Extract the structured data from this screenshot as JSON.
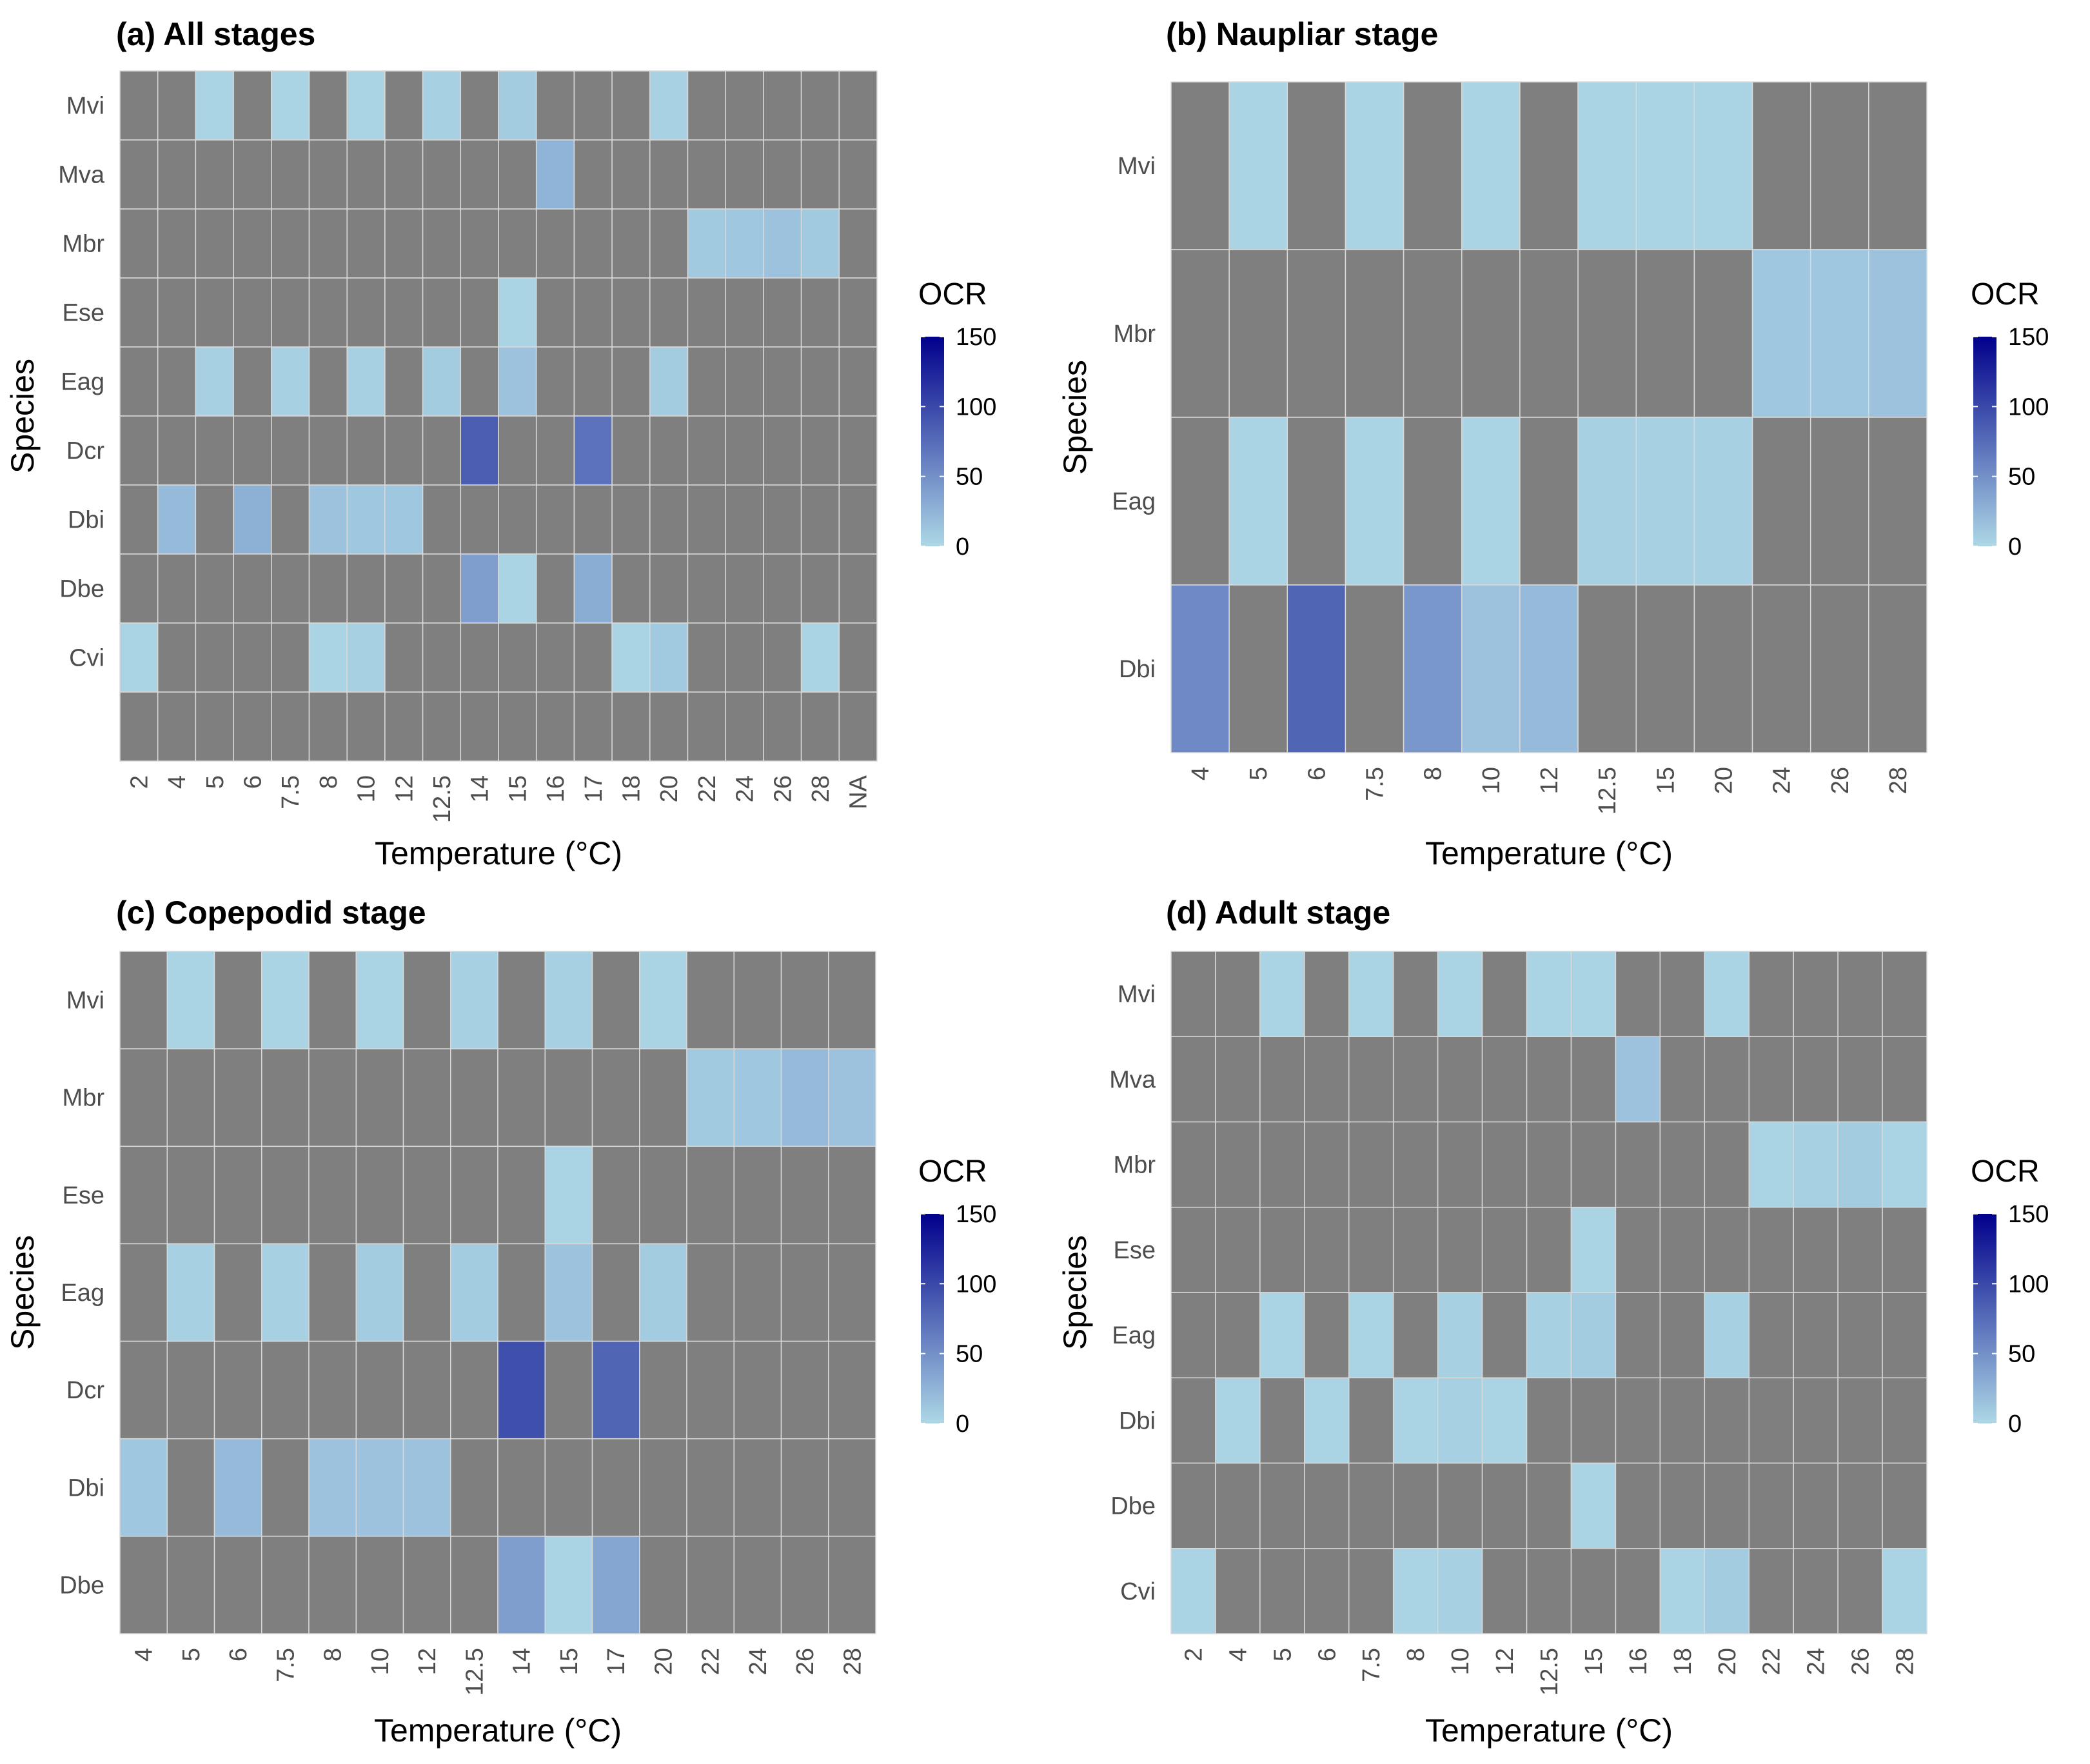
{
  "legend": {
    "title": "OCR",
    "min": 0,
    "max": 150,
    "ticks": [
      150,
      100,
      50,
      0
    ],
    "low_color": "#ADD8E6",
    "high_color": "#00008B"
  },
  "na_color": "#7F7F7F",
  "chart_data": [
    {
      "type": "heatmap",
      "title": "(a) All stages",
      "xlabel": "Temperature (°C)",
      "ylabel": "Species",
      "x": [
        "2",
        "4",
        "5",
        "6",
        "7.5",
        "8",
        "10",
        "12",
        "12.5",
        "14",
        "15",
        "16",
        "17",
        "18",
        "20",
        "22",
        "24",
        "26",
        "28",
        "NA"
      ],
      "y": [
        "Mvi",
        "Mva",
        "Mbr",
        "Ese",
        "Eag",
        "Dcr",
        "Dbi",
        "Dbe",
        "Cvi",
        ""
      ],
      "values": [
        [
          null,
          null,
          3,
          null,
          3,
          null,
          3,
          null,
          5,
          null,
          8,
          null,
          null,
          null,
          4,
          null,
          null,
          null,
          null,
          null
        ],
        [
          null,
          null,
          null,
          null,
          null,
          null,
          null,
          null,
          null,
          null,
          null,
          25,
          null,
          null,
          null,
          null,
          null,
          null,
          null,
          null
        ],
        [
          null,
          null,
          null,
          null,
          null,
          null,
          null,
          null,
          null,
          null,
          null,
          null,
          null,
          null,
          null,
          10,
          12,
          15,
          10,
          null
        ],
        [
          null,
          null,
          null,
          null,
          null,
          null,
          null,
          null,
          null,
          null,
          3,
          null,
          null,
          null,
          null,
          null,
          null,
          null,
          null,
          null
        ],
        [
          null,
          null,
          5,
          null,
          5,
          null,
          5,
          null,
          8,
          null,
          15,
          null,
          null,
          null,
          8,
          null,
          null,
          null,
          null,
          null
        ],
        [
          null,
          null,
          null,
          null,
          null,
          null,
          null,
          null,
          null,
          85,
          null,
          null,
          70,
          null,
          null,
          null,
          null,
          null,
          null,
          null
        ],
        [
          null,
          20,
          null,
          28,
          null,
          15,
          12,
          12,
          null,
          null,
          null,
          null,
          null,
          null,
          null,
          null,
          null,
          null,
          null,
          null
        ],
        [
          null,
          null,
          null,
          null,
          null,
          null,
          null,
          null,
          null,
          40,
          3,
          null,
          30,
          null,
          null,
          null,
          null,
          null,
          null,
          null
        ],
        [
          3,
          null,
          null,
          null,
          null,
          3,
          5,
          null,
          null,
          null,
          null,
          null,
          null,
          3,
          10,
          null,
          null,
          null,
          3,
          null
        ],
        [
          null,
          null,
          null,
          null,
          null,
          null,
          null,
          null,
          null,
          null,
          null,
          null,
          null,
          null,
          null,
          null,
          null,
          null,
          null,
          null
        ]
      ]
    },
    {
      "type": "heatmap",
      "title": "(b) Naupliar stage",
      "xlabel": "Temperature (°C)",
      "ylabel": "Species",
      "x": [
        "4",
        "5",
        "6",
        "7.5",
        "8",
        "10",
        "12",
        "12.5",
        "15",
        "20",
        "24",
        "26",
        "28"
      ],
      "y": [
        "Mvi",
        "Mbr",
        "Eag",
        "Dbi"
      ],
      "values": [
        [
          null,
          3,
          null,
          3,
          null,
          3,
          null,
          3,
          3,
          3,
          null,
          null,
          null
        ],
        [
          null,
          null,
          null,
          null,
          null,
          null,
          null,
          null,
          null,
          null,
          12,
          12,
          15
        ],
        [
          null,
          3,
          null,
          3,
          null,
          3,
          null,
          5,
          5,
          5,
          null,
          null,
          null
        ],
        [
          55,
          null,
          80,
          null,
          45,
          15,
          20,
          null,
          null,
          null,
          null,
          null,
          null
        ]
      ]
    },
    {
      "type": "heatmap",
      "title": "(c) Copepodid stage",
      "xlabel": "Temperature (°C)",
      "ylabel": "Species",
      "x": [
        "4",
        "5",
        "6",
        "7.5",
        "8",
        "10",
        "12",
        "12.5",
        "14",
        "15",
        "17",
        "20",
        "22",
        "24",
        "26",
        "28"
      ],
      "y": [
        "Mvi",
        "Mbr",
        "Ese",
        "Eag",
        "Dcr",
        "Dbi",
        "Dbe"
      ],
      "values": [
        [
          null,
          3,
          null,
          3,
          null,
          3,
          null,
          5,
          null,
          5,
          null,
          3,
          null,
          null,
          null,
          null
        ],
        [
          null,
          null,
          null,
          null,
          null,
          null,
          null,
          null,
          null,
          null,
          null,
          null,
          10,
          12,
          20,
          15
        ],
        [
          null,
          null,
          null,
          null,
          null,
          null,
          null,
          null,
          null,
          3,
          null,
          null,
          null,
          null,
          null,
          null
        ],
        [
          null,
          5,
          null,
          5,
          null,
          8,
          null,
          8,
          null,
          15,
          null,
          8,
          null,
          null,
          null,
          null
        ],
        [
          null,
          null,
          null,
          null,
          null,
          null,
          null,
          null,
          95,
          null,
          80,
          null,
          null,
          null,
          null,
          null
        ],
        [
          12,
          null,
          20,
          null,
          15,
          15,
          15,
          null,
          null,
          null,
          null,
          null,
          null,
          null,
          null,
          null
        ],
        [
          null,
          null,
          null,
          null,
          null,
          null,
          null,
          null,
          40,
          3,
          35,
          null,
          null,
          null,
          null,
          null
        ]
      ]
    },
    {
      "type": "heatmap",
      "title": "(d) Adult stage",
      "xlabel": "Temperature (°C)",
      "ylabel": "Species",
      "x": [
        "2",
        "4",
        "5",
        "6",
        "7.5",
        "8",
        "10",
        "12",
        "12.5",
        "15",
        "16",
        "18",
        "20",
        "22",
        "24",
        "26",
        "28"
      ],
      "y": [
        "Mvi",
        "Mva",
        "Mbr",
        "Ese",
        "Eag",
        "Dbi",
        "Dbe",
        "Cvi"
      ],
      "values": [
        [
          null,
          null,
          3,
          null,
          3,
          null,
          3,
          null,
          3,
          3,
          null,
          null,
          3,
          null,
          null,
          null,
          null
        ],
        [
          null,
          null,
          null,
          null,
          null,
          null,
          null,
          null,
          null,
          null,
          15,
          null,
          null,
          null,
          null,
          null,
          null
        ],
        [
          null,
          null,
          null,
          null,
          null,
          null,
          null,
          null,
          null,
          null,
          null,
          null,
          null,
          3,
          5,
          8,
          3
        ],
        [
          null,
          null,
          null,
          null,
          null,
          null,
          null,
          null,
          null,
          3,
          null,
          null,
          null,
          null,
          null,
          null,
          null
        ],
        [
          null,
          null,
          3,
          null,
          3,
          null,
          5,
          null,
          5,
          8,
          null,
          null,
          5,
          null,
          null,
          null,
          null
        ],
        [
          null,
          3,
          null,
          3,
          null,
          3,
          5,
          3,
          null,
          null,
          null,
          null,
          null,
          null,
          null,
          null,
          null
        ],
        [
          null,
          null,
          null,
          null,
          null,
          null,
          null,
          null,
          null,
          3,
          null,
          null,
          null,
          null,
          null,
          null,
          null
        ],
        [
          3,
          null,
          null,
          null,
          null,
          3,
          5,
          null,
          null,
          null,
          null,
          3,
          8,
          null,
          null,
          null,
          3
        ]
      ]
    }
  ]
}
